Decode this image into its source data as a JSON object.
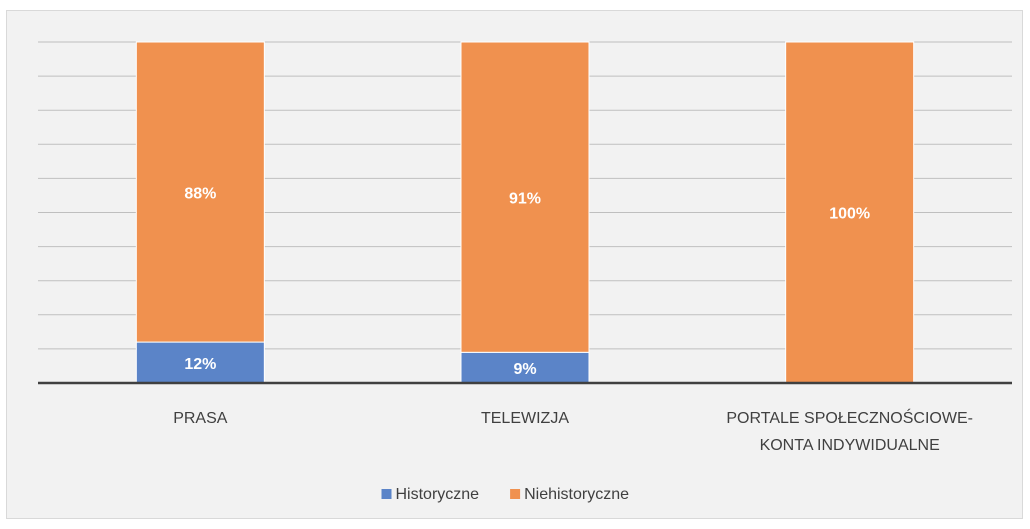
{
  "chart_data": {
    "type": "stacked_bar",
    "categories": [
      "PRASA",
      "TELEWIZJA",
      "PORTALE SPOŁECZNOŚCIOWE-\nKONTA INDYWIDUALNE"
    ],
    "series": [
      {
        "name": "Historyczne",
        "color": "#5b84c8",
        "values": [
          12,
          9,
          0
        ],
        "value_labels": [
          "12%",
          "9%",
          null
        ]
      },
      {
        "name": "Niehistoryczne",
        "color": "#f0914f",
        "values": [
          88,
          91,
          100
        ],
        "value_labels": [
          "88%",
          "91%",
          "100%"
        ]
      }
    ],
    "ylim": [
      0,
      100
    ],
    "yticks": [
      0,
      10,
      20,
      30,
      40,
      50,
      60,
      70,
      80,
      90,
      100
    ],
    "grid": true,
    "legend": "bottom"
  }
}
